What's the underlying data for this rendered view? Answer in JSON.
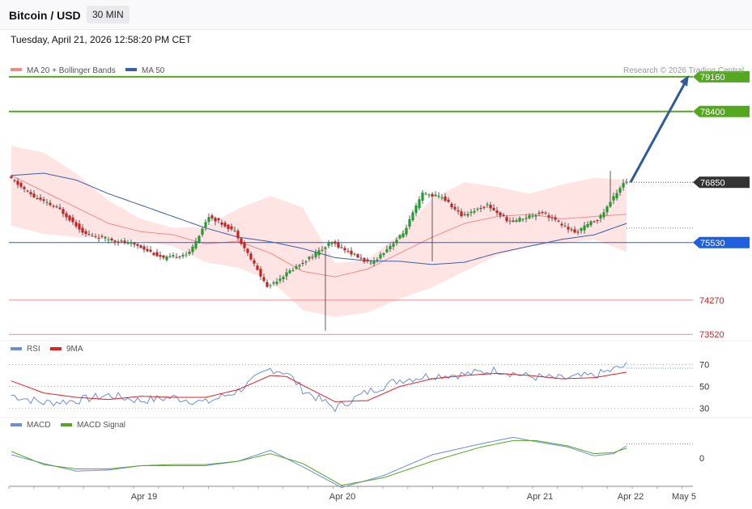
{
  "header": {
    "instrument": "Bitcoin / USD",
    "timeframe": "30 MIN"
  },
  "timestamp": "Tuesday, April 21, 2026 12:58:20 PM CET",
  "copyright": "Research © 2026 Trading Central",
  "colors": {
    "bull": "#1a9e2c",
    "bear": "#cc1f1f",
    "ma20": "#f08a8a",
    "ma50": "#3b5ea8",
    "band": "#ffd9d9",
    "resistance": "#54a820",
    "pivot": "#2060e0",
    "support": "#f08a8a",
    "target_arrow": "#2f5c98",
    "rsi": "#6c8cdc",
    "rsi_ma": "#e02020",
    "macd": "#6c8cdc",
    "signal": "#54a820"
  },
  "chart_data": [
    {
      "type": "candlestick",
      "legend": [
        "MA 20 + Bollinger Bands",
        "MA 50"
      ],
      "ylim": [
        73400,
        79300
      ],
      "x_labels": [
        "Apr 19",
        "Apr 20",
        "Apr 21",
        "Apr 22",
        "May 5"
      ],
      "levels": [
        {
          "value": 79160,
          "label": "79160",
          "kind": "resistance"
        },
        {
          "value": 78400,
          "label": "78400",
          "kind": "resistance"
        },
        {
          "value": 76850,
          "label": "76850",
          "kind": "last"
        },
        {
          "value": 75530,
          "label": "75530",
          "kind": "pivot"
        },
        {
          "value": 74270,
          "label": "74270",
          "kind": "support"
        },
        {
          "value": 73520,
          "label": "73520",
          "kind": "support"
        }
      ],
      "target_arrow": {
        "from": 76850,
        "to": 79160
      },
      "anchors": {
        "open": [
          [
            0,
            76970
          ],
          [
            8,
            76530
          ],
          [
            16,
            76250
          ],
          [
            24,
            75710
          ],
          [
            32,
            75590
          ],
          [
            40,
            75470
          ],
          [
            48,
            75180
          ],
          [
            56,
            75300
          ],
          [
            62,
            76110
          ],
          [
            70,
            75780
          ],
          [
            80,
            74560
          ],
          [
            90,
            75050
          ],
          [
            100,
            75530
          ],
          [
            112,
            75060
          ],
          [
            122,
            75730
          ],
          [
            128,
            76600
          ],
          [
            134,
            76530
          ],
          [
            140,
            76120
          ],
          [
            148,
            76350
          ],
          [
            155,
            75980
          ],
          [
            165,
            76200
          ],
          [
            175,
            75740
          ],
          [
            183,
            76100
          ],
          [
            190,
            76850
          ]
        ],
        "ma20": [
          [
            0,
            77000
          ],
          [
            10,
            76650
          ],
          [
            20,
            76300
          ],
          [
            30,
            75950
          ],
          [
            40,
            75770
          ],
          [
            50,
            75700
          ],
          [
            60,
            75500
          ],
          [
            70,
            75560
          ],
          [
            80,
            75300
          ],
          [
            90,
            74900
          ],
          [
            100,
            74780
          ],
          [
            110,
            74950
          ],
          [
            120,
            75300
          ],
          [
            130,
            75650
          ],
          [
            140,
            75950
          ],
          [
            150,
            76100
          ],
          [
            160,
            76150
          ],
          [
            170,
            76050
          ],
          [
            180,
            76100
          ],
          [
            190,
            76150
          ]
        ],
        "ma50": [
          [
            0,
            77000
          ],
          [
            10,
            77050
          ],
          [
            20,
            76900
          ],
          [
            30,
            76600
          ],
          [
            40,
            76350
          ],
          [
            50,
            76100
          ],
          [
            60,
            75850
          ],
          [
            70,
            75650
          ],
          [
            80,
            75550
          ],
          [
            90,
            75400
          ],
          [
            100,
            75200
          ],
          [
            110,
            75130
          ],
          [
            120,
            75120
          ],
          [
            130,
            75050
          ],
          [
            140,
            75100
          ],
          [
            150,
            75300
          ],
          [
            160,
            75450
          ],
          [
            170,
            75600
          ],
          [
            180,
            75700
          ],
          [
            190,
            75950
          ]
        ],
        "band_upper": [
          [
            0,
            77650
          ],
          [
            10,
            77500
          ],
          [
            20,
            77050
          ],
          [
            30,
            76450
          ],
          [
            40,
            76050
          ],
          [
            50,
            75850
          ],
          [
            60,
            75880
          ],
          [
            70,
            76270
          ],
          [
            80,
            76550
          ],
          [
            90,
            76300
          ],
          [
            100,
            75080
          ],
          [
            110,
            75150
          ],
          [
            120,
            75720
          ],
          [
            130,
            76500
          ],
          [
            140,
            76850
          ],
          [
            150,
            76750
          ],
          [
            160,
            76600
          ],
          [
            170,
            76800
          ],
          [
            180,
            76950
          ],
          [
            190,
            76900
          ]
        ],
        "band_lower": [
          [
            0,
            75900
          ],
          [
            10,
            75720
          ],
          [
            20,
            75650
          ],
          [
            30,
            75640
          ],
          [
            40,
            75560
          ],
          [
            50,
            75450
          ],
          [
            60,
            75100
          ],
          [
            70,
            74980
          ],
          [
            80,
            74700
          ],
          [
            90,
            74050
          ],
          [
            100,
            73900
          ],
          [
            110,
            74000
          ],
          [
            120,
            74300
          ],
          [
            130,
            74550
          ],
          [
            140,
            74900
          ],
          [
            150,
            75250
          ],
          [
            160,
            75450
          ],
          [
            170,
            75500
          ],
          [
            180,
            75600
          ],
          [
            190,
            75330
          ]
        ]
      }
    },
    {
      "type": "line",
      "name": "RSI panel",
      "legend": [
        "RSI",
        "9MA"
      ],
      "ylim": [
        20,
        80
      ],
      "yticks": [
        70,
        50,
        30
      ],
      "anchors": {
        "rsi": [
          [
            0,
            42
          ],
          [
            10,
            35
          ],
          [
            20,
            37
          ],
          [
            30,
            42
          ],
          [
            40,
            37
          ],
          [
            50,
            40
          ],
          [
            60,
            35
          ],
          [
            70,
            46
          ],
          [
            80,
            66
          ],
          [
            85,
            63
          ],
          [
            90,
            47
          ],
          [
            100,
            30
          ],
          [
            110,
            45
          ],
          [
            120,
            56
          ],
          [
            130,
            60
          ],
          [
            140,
            61
          ],
          [
            150,
            65
          ],
          [
            160,
            59
          ],
          [
            170,
            57
          ],
          [
            180,
            60
          ],
          [
            190,
            69
          ]
        ],
        "rsi_ma": [
          [
            0,
            55
          ],
          [
            10,
            44
          ],
          [
            20,
            40
          ],
          [
            30,
            38
          ],
          [
            40,
            41
          ],
          [
            50,
            40
          ],
          [
            60,
            40
          ],
          [
            70,
            47
          ],
          [
            80,
            60
          ],
          [
            85,
            59
          ],
          [
            90,
            51
          ],
          [
            100,
            36
          ],
          [
            110,
            37
          ],
          [
            120,
            50
          ],
          [
            130,
            57
          ],
          [
            140,
            60
          ],
          [
            150,
            62
          ],
          [
            160,
            60
          ],
          [
            170,
            57
          ],
          [
            180,
            58
          ],
          [
            190,
            63
          ]
        ]
      }
    },
    {
      "type": "line",
      "name": "MACD panel",
      "legend": [
        "MACD",
        "MACD Signal"
      ],
      "yticks": [
        0
      ],
      "anchors": {
        "macd": [
          [
            0,
            3
          ],
          [
            10,
            -5
          ],
          [
            20,
            -12
          ],
          [
            30,
            -11
          ],
          [
            40,
            -7
          ],
          [
            50,
            -7
          ],
          [
            60,
            -7
          ],
          [
            70,
            -3
          ],
          [
            80,
            7
          ],
          [
            90,
            -8
          ],
          [
            102,
            -27
          ],
          [
            115,
            -16
          ],
          [
            130,
            3
          ],
          [
            145,
            13
          ],
          [
            155,
            19
          ],
          [
            162,
            15
          ],
          [
            172,
            10
          ],
          [
            180,
            2
          ],
          [
            186,
            4
          ],
          [
            190,
            11
          ]
        ],
        "signal": [
          [
            0,
            6
          ],
          [
            10,
            -6
          ],
          [
            20,
            -10
          ],
          [
            30,
            -10
          ],
          [
            40,
            -7
          ],
          [
            50,
            -6
          ],
          [
            60,
            -6
          ],
          [
            70,
            -3
          ],
          [
            80,
            4
          ],
          [
            90,
            -5
          ],
          [
            102,
            -25
          ],
          [
            115,
            -18
          ],
          [
            130,
            -3
          ],
          [
            145,
            10
          ],
          [
            155,
            16
          ],
          [
            162,
            16
          ],
          [
            172,
            11
          ],
          [
            180,
            4
          ],
          [
            186,
            5
          ],
          [
            190,
            9
          ]
        ]
      }
    }
  ]
}
